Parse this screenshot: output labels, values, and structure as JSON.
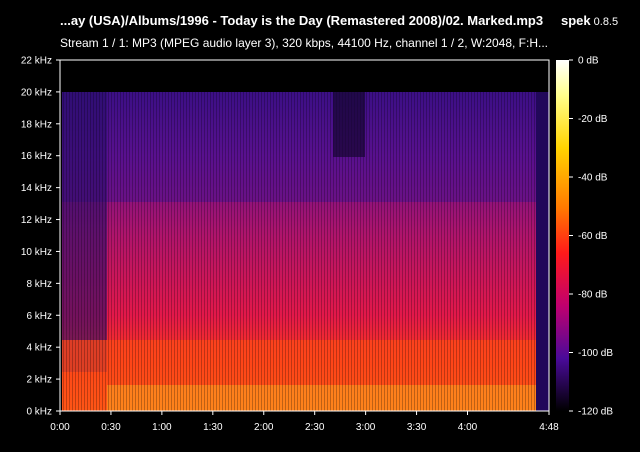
{
  "window": {
    "title": "...ay (USA)/Albums/1996 - Today is the Day (Remastered 2008)/02. Marked.mp3",
    "app_name": "spek",
    "app_version": "0.8.5",
    "stream_info": "Stream 1 / 1: MP3 (MPEG audio layer 3), 320 kbps, 44100 Hz, channel 1 / 2, W:2048, F:H..."
  },
  "spectrogram": {
    "freq_axis_labels": [
      "22 kHz",
      "20 kHz",
      "18 kHz",
      "16 kHz",
      "14 kHz",
      "12 kHz",
      "10 kHz",
      "8 kHz",
      "6 kHz",
      "4 kHz",
      "2 kHz",
      "0 kHz"
    ],
    "time_axis_labels": [
      "0:00",
      "0:30",
      "1:00",
      "1:30",
      "2:00",
      "2:30",
      "3:00",
      "3:30",
      "4:00",
      "4:48"
    ],
    "duration_seconds": 288,
    "max_freq_khz": 22,
    "lowpass_cutoff_khz": 20,
    "colors": {
      "background": "#000000",
      "high": "#ff3b1a",
      "mid": "#c0185a",
      "low": "#3a1080"
    }
  },
  "legend": {
    "db_labels": [
      "0 dB",
      "-20 dB",
      "-40 dB",
      "-60 dB",
      "-80 dB",
      "-100 dB",
      "-120 dB"
    ],
    "colors": [
      "#ffffff",
      "#ffff8c",
      "#ffd400",
      "#ff7a00",
      "#ff1a1a",
      "#c0006e",
      "#4a0a9a",
      "#000000"
    ]
  }
}
